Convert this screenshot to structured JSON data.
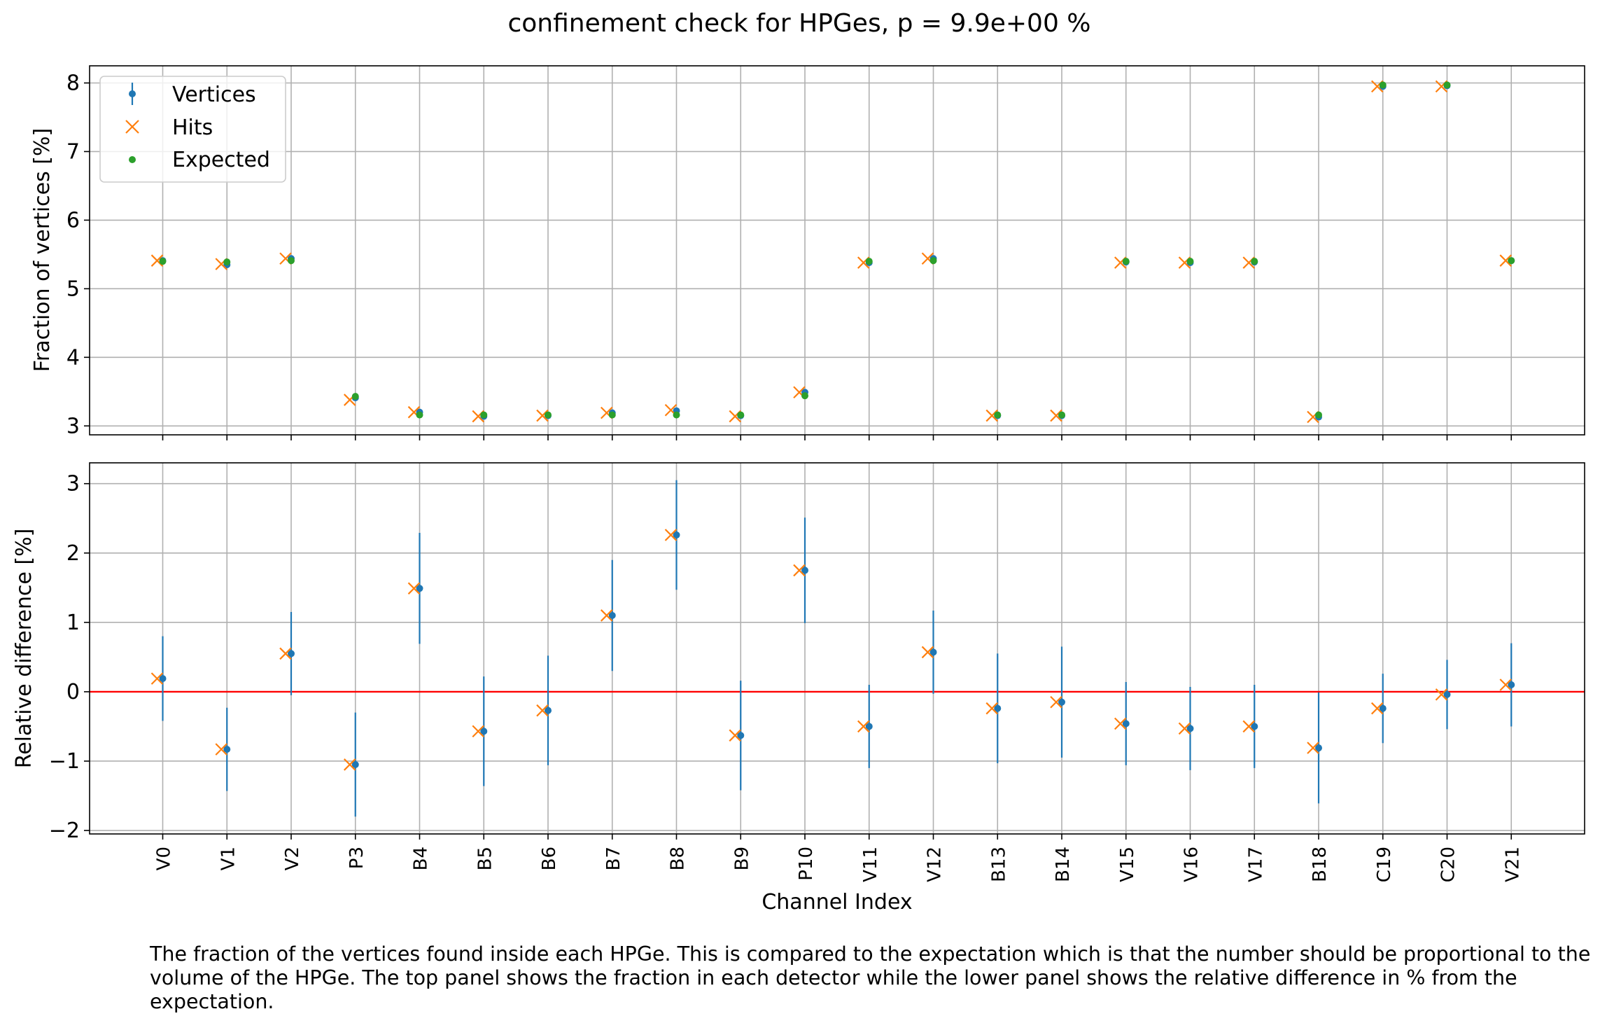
{
  "figure": {
    "title": "confinement check for HPGes, p = 9.9e+00 %",
    "caption": "The fraction of the vertices found inside each HPGe. This is compared to the expectation which is that the number should be proportional to the volume of the HPGe. The top panel shows the fraction in each detector while the lower panel shows the relative difference in % from the expectation."
  },
  "colors": {
    "vertices": "#1f77b4",
    "hits": "#ff7f0e",
    "expected": "#2ca02c",
    "zero_line": "#ff0000",
    "grid": "#b0b0b0"
  },
  "chart_data": [
    {
      "type": "scatter",
      "panel": "top",
      "ylabel": "Fraction of vertices [%]",
      "ylim": [
        2.87,
        8.25
      ],
      "yticks": [
        3,
        4,
        5,
        6,
        7,
        8
      ],
      "grid": true,
      "legend": {
        "placement": "top-left",
        "entries": [
          "Vertices",
          "Hits",
          "Expected"
        ]
      },
      "categories": [
        "V0",
        "V1",
        "V2",
        "P3",
        "B4",
        "B5",
        "B6",
        "B7",
        "B8",
        "B9",
        "P10",
        "V11",
        "V12",
        "B13",
        "B14",
        "V15",
        "V16",
        "V17",
        "B18",
        "C19",
        "C20",
        "V21"
      ],
      "series": [
        {
          "name": "Vertices",
          "marker": "errorbar-dot",
          "values": [
            5.41,
            5.35,
            5.44,
            3.41,
            3.2,
            3.14,
            3.15,
            3.19,
            3.22,
            3.15,
            3.49,
            5.38,
            5.44,
            3.15,
            3.15,
            5.39,
            5.38,
            5.39,
            3.13,
            7.95,
            7.96,
            5.41
          ],
          "errors": [
            0.03,
            0.03,
            0.03,
            0.03,
            0.03,
            0.03,
            0.03,
            0.03,
            0.03,
            0.03,
            0.03,
            0.03,
            0.03,
            0.03,
            0.03,
            0.03,
            0.03,
            0.03,
            0.03,
            0.03,
            0.03,
            0.03
          ]
        },
        {
          "name": "Hits",
          "marker": "x",
          "values": [
            5.41,
            5.36,
            5.44,
            3.38,
            3.2,
            3.14,
            3.15,
            3.19,
            3.23,
            3.14,
            3.49,
            5.38,
            5.44,
            3.15,
            3.15,
            5.38,
            5.38,
            5.38,
            3.13,
            7.95,
            7.95,
            5.41
          ]
        },
        {
          "name": "Expected",
          "marker": "dot",
          "values": [
            5.4,
            5.39,
            5.41,
            3.43,
            3.16,
            3.16,
            3.16,
            3.16,
            3.16,
            3.16,
            3.44,
            5.4,
            5.41,
            3.16,
            3.16,
            5.4,
            5.4,
            5.4,
            3.16,
            7.97,
            7.97,
            5.41
          ]
        }
      ]
    },
    {
      "type": "scatter",
      "panel": "bottom",
      "ylabel": "Relative difference [%]",
      "xlabel": "Channel Index",
      "ylim": [
        -2.05,
        3.3
      ],
      "yticks": [
        -2,
        -1,
        0,
        1,
        2,
        3
      ],
      "grid": true,
      "reference_line": 0,
      "categories": [
        "V0",
        "V1",
        "V2",
        "P3",
        "B4",
        "B5",
        "B6",
        "B7",
        "B8",
        "B9",
        "P10",
        "V11",
        "V12",
        "B13",
        "B14",
        "V15",
        "V16",
        "V17",
        "B18",
        "C19",
        "C20",
        "V21"
      ],
      "series": [
        {
          "name": "Vertices",
          "marker": "errorbar-dot",
          "values": [
            0.19,
            -0.83,
            0.55,
            -1.05,
            1.49,
            -0.57,
            -0.27,
            1.1,
            2.26,
            -0.63,
            1.75,
            -0.5,
            0.57,
            -0.24,
            -0.15,
            -0.46,
            -0.53,
            -0.5,
            -0.81,
            -0.24,
            -0.04,
            0.1
          ],
          "errors": [
            0.61,
            0.6,
            0.6,
            0.75,
            0.8,
            0.79,
            0.79,
            0.8,
            0.79,
            0.79,
            0.76,
            0.6,
            0.6,
            0.79,
            0.8,
            0.6,
            0.6,
            0.6,
            0.8,
            0.5,
            0.5,
            0.6
          ]
        },
        {
          "name": "Hits",
          "marker": "x",
          "values": [
            0.19,
            -0.83,
            0.55,
            -1.05,
            1.49,
            -0.57,
            -0.27,
            1.1,
            2.26,
            -0.63,
            1.75,
            -0.5,
            0.57,
            -0.24,
            -0.15,
            -0.46,
            -0.53,
            -0.5,
            -0.81,
            -0.24,
            -0.04,
            0.1
          ]
        }
      ]
    }
  ]
}
